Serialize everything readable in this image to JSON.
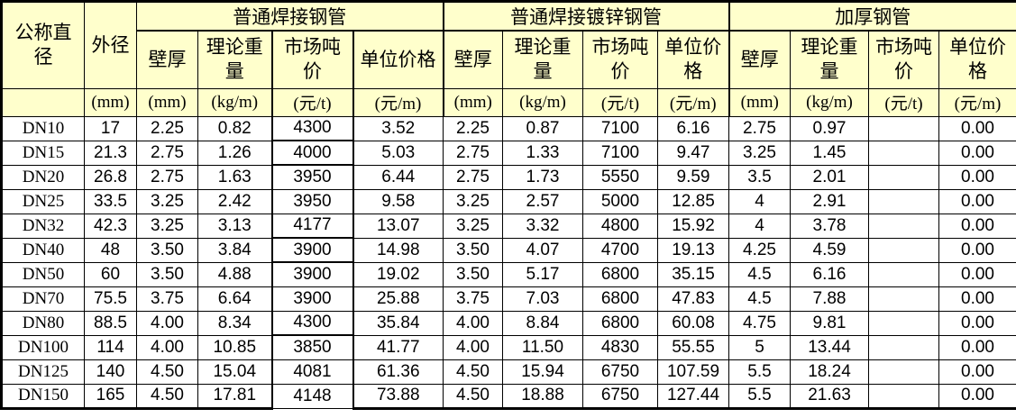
{
  "table": {
    "corner": {
      "col1": "公称直\n径",
      "col2": "外径"
    },
    "groups": [
      {
        "title": "普通焊接钢管",
        "columns": [
          "壁厚",
          "理论重\n量",
          "市场吨\n价",
          "单位价格"
        ]
      },
      {
        "title": "普通焊接镀锌钢管",
        "columns": [
          "壁厚",
          "理论重\n量",
          "市场吨\n价",
          "单位价\n格"
        ]
      },
      {
        "title": "加厚钢管",
        "columns": [
          "壁厚",
          "理论重\n量",
          "市场吨\n价",
          "单位价\n格"
        ]
      }
    ],
    "units": [
      "",
      "(mm)",
      "(mm)",
      "(kg/m)",
      "(元/t)",
      "(元/m)",
      "(mm)",
      "(kg/m)",
      "(元/t)",
      "(元/m)",
      "(mm)",
      "(kg/m)",
      "(元/t)",
      "(元/m)"
    ],
    "rows": [
      {
        "dn": "DN10",
        "od": "17",
        "g1": [
          "2.25",
          "0.82",
          "4300",
          "3.52"
        ],
        "g2": [
          "2.25",
          "0.87",
          "7100",
          "6.16"
        ],
        "g3": [
          "2.75",
          "0.97",
          "",
          "0.00"
        ]
      },
      {
        "dn": "DN15",
        "od": "21.3",
        "g1": [
          "2.75",
          "1.26",
          "4000",
          "5.03"
        ],
        "g2": [
          "2.75",
          "1.33",
          "7100",
          "9.47"
        ],
        "g3": [
          "3.25",
          "1.45",
          "",
          "0.00"
        ]
      },
      {
        "dn": "DN20",
        "od": "26.8",
        "g1": [
          "2.75",
          "1.63",
          "3950",
          "6.44"
        ],
        "g2": [
          "2.75",
          "1.73",
          "5550",
          "9.59"
        ],
        "g3": [
          "3.5",
          "2.01",
          "",
          "0.00"
        ]
      },
      {
        "dn": "DN25",
        "od": "33.5",
        "g1": [
          "3.25",
          "2.42",
          "3950",
          "9.58"
        ],
        "g2": [
          "3.25",
          "2.57",
          "5000",
          "12.85"
        ],
        "g3": [
          "4",
          "2.91",
          "",
          "0.00"
        ]
      },
      {
        "dn": "DN32",
        "od": "42.3",
        "g1": [
          "3.25",
          "3.13",
          "4177",
          "13.07"
        ],
        "g2": [
          "3.25",
          "3.32",
          "4800",
          "15.92"
        ],
        "g3": [
          "4",
          "3.78",
          "",
          "0.00"
        ]
      },
      {
        "dn": "DN40",
        "od": "48",
        "g1": [
          "3.50",
          "3.84",
          "3900",
          "14.98"
        ],
        "g2": [
          "3.50",
          "4.07",
          "4700",
          "19.13"
        ],
        "g3": [
          "4.25",
          "4.59",
          "",
          "0.00"
        ]
      },
      {
        "dn": "DN50",
        "od": "60",
        "g1": [
          "3.50",
          "4.88",
          "3900",
          "19.02"
        ],
        "g2": [
          "3.50",
          "5.17",
          "6800",
          "35.15"
        ],
        "g3": [
          "4.5",
          "6.16",
          "",
          "0.00"
        ]
      },
      {
        "dn": "DN70",
        "od": "75.5",
        "g1": [
          "3.75",
          "6.64",
          "3900",
          "25.88"
        ],
        "g2": [
          "3.75",
          "7.03",
          "6800",
          "47.83"
        ],
        "g3": [
          "4.5",
          "7.88",
          "",
          "0.00"
        ]
      },
      {
        "dn": "DN80",
        "od": "88.5",
        "g1": [
          "4.00",
          "8.34",
          "4300",
          "35.84"
        ],
        "g2": [
          "4.00",
          "8.84",
          "6800",
          "60.08"
        ],
        "g3": [
          "4.75",
          "9.81",
          "",
          "0.00"
        ]
      },
      {
        "dn": "DN100",
        "od": "114",
        "g1": [
          "4.00",
          "10.85",
          "3850",
          "41.77"
        ],
        "g2": [
          "4.00",
          "11.50",
          "4830",
          "55.55"
        ],
        "g3": [
          "5",
          "13.44",
          "",
          "0.00"
        ]
      },
      {
        "dn": "DN125",
        "od": "140",
        "g1": [
          "4.50",
          "15.04",
          "4081",
          "61.36"
        ],
        "g2": [
          "4.50",
          "15.94",
          "6750",
          "107.59"
        ],
        "g3": [
          "5.5",
          "18.24",
          "",
          "0.00"
        ]
      },
      {
        "dn": "DN150",
        "od": "165",
        "g1": [
          "4.50",
          "17.81",
          "4148",
          "73.88"
        ],
        "g2": [
          "4.50",
          "18.88",
          "6750",
          "127.44"
        ],
        "g3": [
          "5.5",
          "21.63",
          "",
          "0.00"
        ]
      }
    ],
    "colors": {
      "header_bg": "#FFFFCC",
      "grid": "#000000",
      "text": "#000000"
    }
  }
}
